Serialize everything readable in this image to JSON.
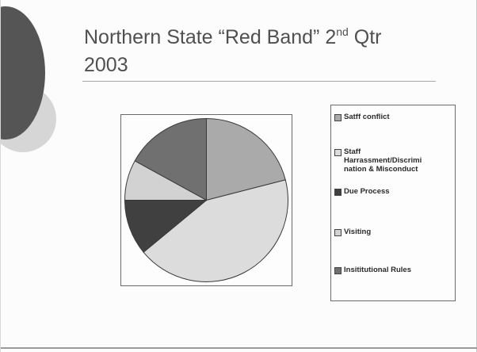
{
  "slide": {
    "title_main": "Northern State “Red Band” 2",
    "title_sup": "nd",
    "title_tail": " Qtr",
    "title_line2": "2003"
  },
  "colors": {
    "slice_1": "#aaaaaa",
    "slice_2": "#dcdcdc",
    "slice_3": "#404040",
    "slice_4": "#d2d2d2",
    "slice_5": "#707070"
  },
  "chart_data": {
    "type": "pie",
    "title": "Northern State “Red Band” 2nd Qtr 2003",
    "legend_position": "right",
    "slices": [
      {
        "label": "Satff conflict",
        "value": 21
      },
      {
        "label": "Staff Harrassment/Discrimination & Misconduct",
        "value": 43
      },
      {
        "label": "Due Process",
        "value": 11
      },
      {
        "label": "Visiting",
        "value": 8
      },
      {
        "label": "Insititutional Rules",
        "value": 17
      }
    ],
    "legend": [
      {
        "label": "Satff conflict",
        "lines": [
          "Satff conflict"
        ]
      },
      {
        "label": "Staff Harrassment/Discrimination & Misconduct",
        "lines": [
          "Staff",
          "Harrassment/Discrimi",
          "nation & Misconduct"
        ]
      },
      {
        "label": "Due Process",
        "lines": [
          "Due Process"
        ]
      },
      {
        "label": "Visiting",
        "lines": [
          "Visiting"
        ]
      },
      {
        "label": "Insititutional Rules",
        "lines": [
          "Insititutional Rules"
        ]
      }
    ]
  }
}
